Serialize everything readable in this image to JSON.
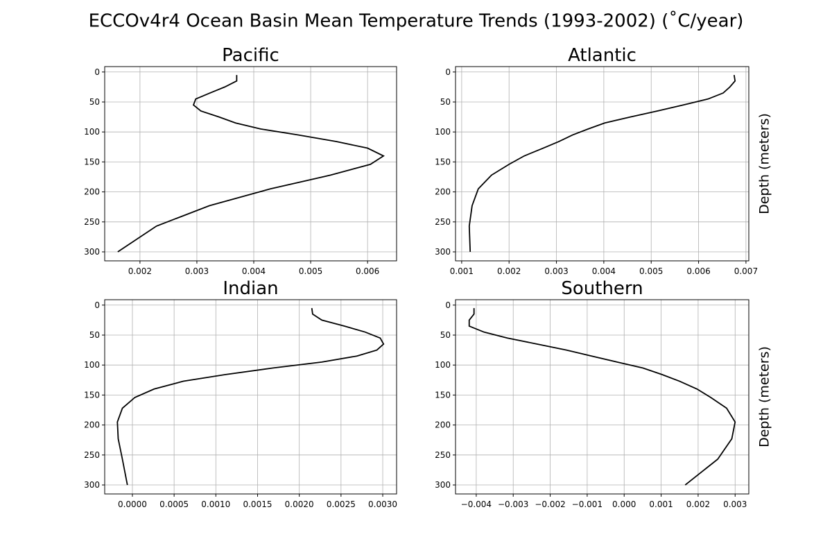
{
  "title": "ECCOv4r4 Ocean Basin Mean Temperature Trends (1993-2002) (˚C/year)",
  "chart_data": [
    {
      "type": "line",
      "title": "Pacific",
      "color": "#000000",
      "grid": true,
      "depth": [
        5,
        15,
        25,
        35,
        45,
        55,
        65,
        75,
        85,
        95,
        105,
        116,
        127,
        140,
        154,
        172,
        195,
        223,
        257,
        300
      ],
      "values": [
        0.0037,
        0.0037,
        0.00349,
        0.00323,
        0.00298,
        0.00294,
        0.00307,
        0.00339,
        0.00368,
        0.00412,
        0.00478,
        0.00545,
        0.006,
        0.00628,
        0.00605,
        0.00535,
        0.00429,
        0.00322,
        0.00229,
        0.00161
      ],
      "xlim": [
        0.00138,
        0.00651
      ],
      "xticks": [
        0.002,
        0.003,
        0.004,
        0.005,
        0.006
      ],
      "ylim": [
        315,
        -9
      ],
      "yticks": [
        0,
        50,
        100,
        150,
        200,
        250,
        300
      ]
    },
    {
      "type": "line",
      "title": "Atlantic",
      "ylabel": "Depth (meters)",
      "color": "#000000",
      "grid": true,
      "depth": [
        5,
        15,
        25,
        35,
        45,
        55,
        65,
        75,
        85,
        95,
        105,
        116,
        127,
        140,
        154,
        172,
        195,
        223,
        257,
        300
      ],
      "values": [
        0.00675,
        0.00677,
        0.00666,
        0.00652,
        0.0062,
        0.00568,
        0.00513,
        0.00456,
        0.00402,
        0.00367,
        0.00334,
        0.00305,
        0.00272,
        0.00232,
        0.002,
        0.00163,
        0.00135,
        0.00122,
        0.00116,
        0.00118
      ],
      "xlim": [
        0.00087,
        0.00706
      ],
      "xticks": [
        0.001,
        0.002,
        0.003,
        0.004,
        0.005,
        0.006,
        0.007
      ],
      "ylim": [
        315,
        -9
      ],
      "yticks": [
        0,
        50,
        100,
        150,
        200,
        250,
        300
      ]
    },
    {
      "type": "line",
      "title": "Indian",
      "color": "#000000",
      "grid": true,
      "depth": [
        5,
        15,
        25,
        35,
        45,
        55,
        65,
        75,
        85,
        95,
        105,
        116,
        127,
        140,
        154,
        172,
        195,
        223,
        257,
        300
      ],
      "values": [
        0.00215,
        0.00216,
        0.00227,
        0.00254,
        0.00279,
        0.00297,
        0.00301,
        0.00293,
        0.00269,
        0.00227,
        0.00168,
        0.00111,
        0.00061,
        0.00026,
        3e-05,
        -0.00012,
        -0.00018,
        -0.00017,
        -0.00012,
        -6e-05
      ],
      "xlim": [
        -0.000332,
        0.003166
      ],
      "xticks": [
        {
          "value": 0,
          "label": "0.0000"
        },
        {
          "value": 0.0005,
          "label": "0.0005"
        },
        {
          "value": 0.001,
          "label": "0.0010"
        },
        {
          "value": 0.0015,
          "label": "0.0015"
        },
        {
          "value": 0.002,
          "label": "0.0020"
        },
        {
          "value": 0.0025,
          "label": "0.0025"
        },
        {
          "value": 0.003,
          "label": "0.0030"
        }
      ],
      "ylim": [
        315,
        -9
      ],
      "yticks": [
        0,
        50,
        100,
        150,
        200,
        250,
        300
      ]
    },
    {
      "type": "line",
      "title": "Southern",
      "ylabel": "Depth (meters)",
      "color": "#000000",
      "grid": true,
      "depth": [
        5,
        15,
        25,
        35,
        45,
        55,
        65,
        75,
        85,
        95,
        105,
        116,
        127,
        140,
        154,
        172,
        195,
        223,
        257,
        300
      ],
      "values": [
        -0.00406,
        -0.00406,
        -0.00419,
        -0.00419,
        -0.00379,
        -0.00316,
        -0.00235,
        -0.00156,
        -0.00088,
        -0.00019,
        0.00051,
        0.00103,
        0.0015,
        0.00197,
        0.00234,
        0.00277,
        0.003,
        0.00291,
        0.00253,
        0.00165
      ],
      "xlim": [
        -0.00456,
        0.00337
      ],
      "xticks": [
        {
          "value": -0.004,
          "label": "−0.004"
        },
        {
          "value": -0.003,
          "label": "−0.003"
        },
        {
          "value": -0.002,
          "label": "−0.002"
        },
        {
          "value": -0.001,
          "label": "−0.001"
        },
        {
          "value": 0,
          "label": "0.000"
        },
        {
          "value": 0.001,
          "label": "0.001"
        },
        {
          "value": 0.002,
          "label": "0.002"
        },
        {
          "value": 0.003,
          "label": "0.003"
        }
      ],
      "ylim": [
        315,
        -9
      ],
      "yticks": [
        0,
        50,
        100,
        150,
        200,
        250,
        300
      ]
    }
  ]
}
